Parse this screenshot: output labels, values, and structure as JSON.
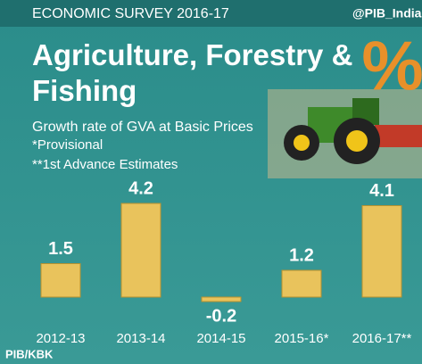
{
  "header": {
    "survey": "ECONOMIC SURVEY 2016-17",
    "handle": "@PIB_India"
  },
  "symbol": "%",
  "footer": "PIB/KBK",
  "chart_data": {
    "type": "bar",
    "title": "Agriculture, Forestry & Fishing",
    "subtitle": "Growth rate of GVA at Basic Prices",
    "notes": [
      "*Provisional",
      "**1st Advance Estimates"
    ],
    "categories": [
      "2012-13",
      "2013-14",
      "2014-15",
      "2015-16*",
      "2016-17**"
    ],
    "values": [
      1.5,
      4.2,
      -0.2,
      1.2,
      4.1
    ],
    "color": "#e9c35c"
  }
}
